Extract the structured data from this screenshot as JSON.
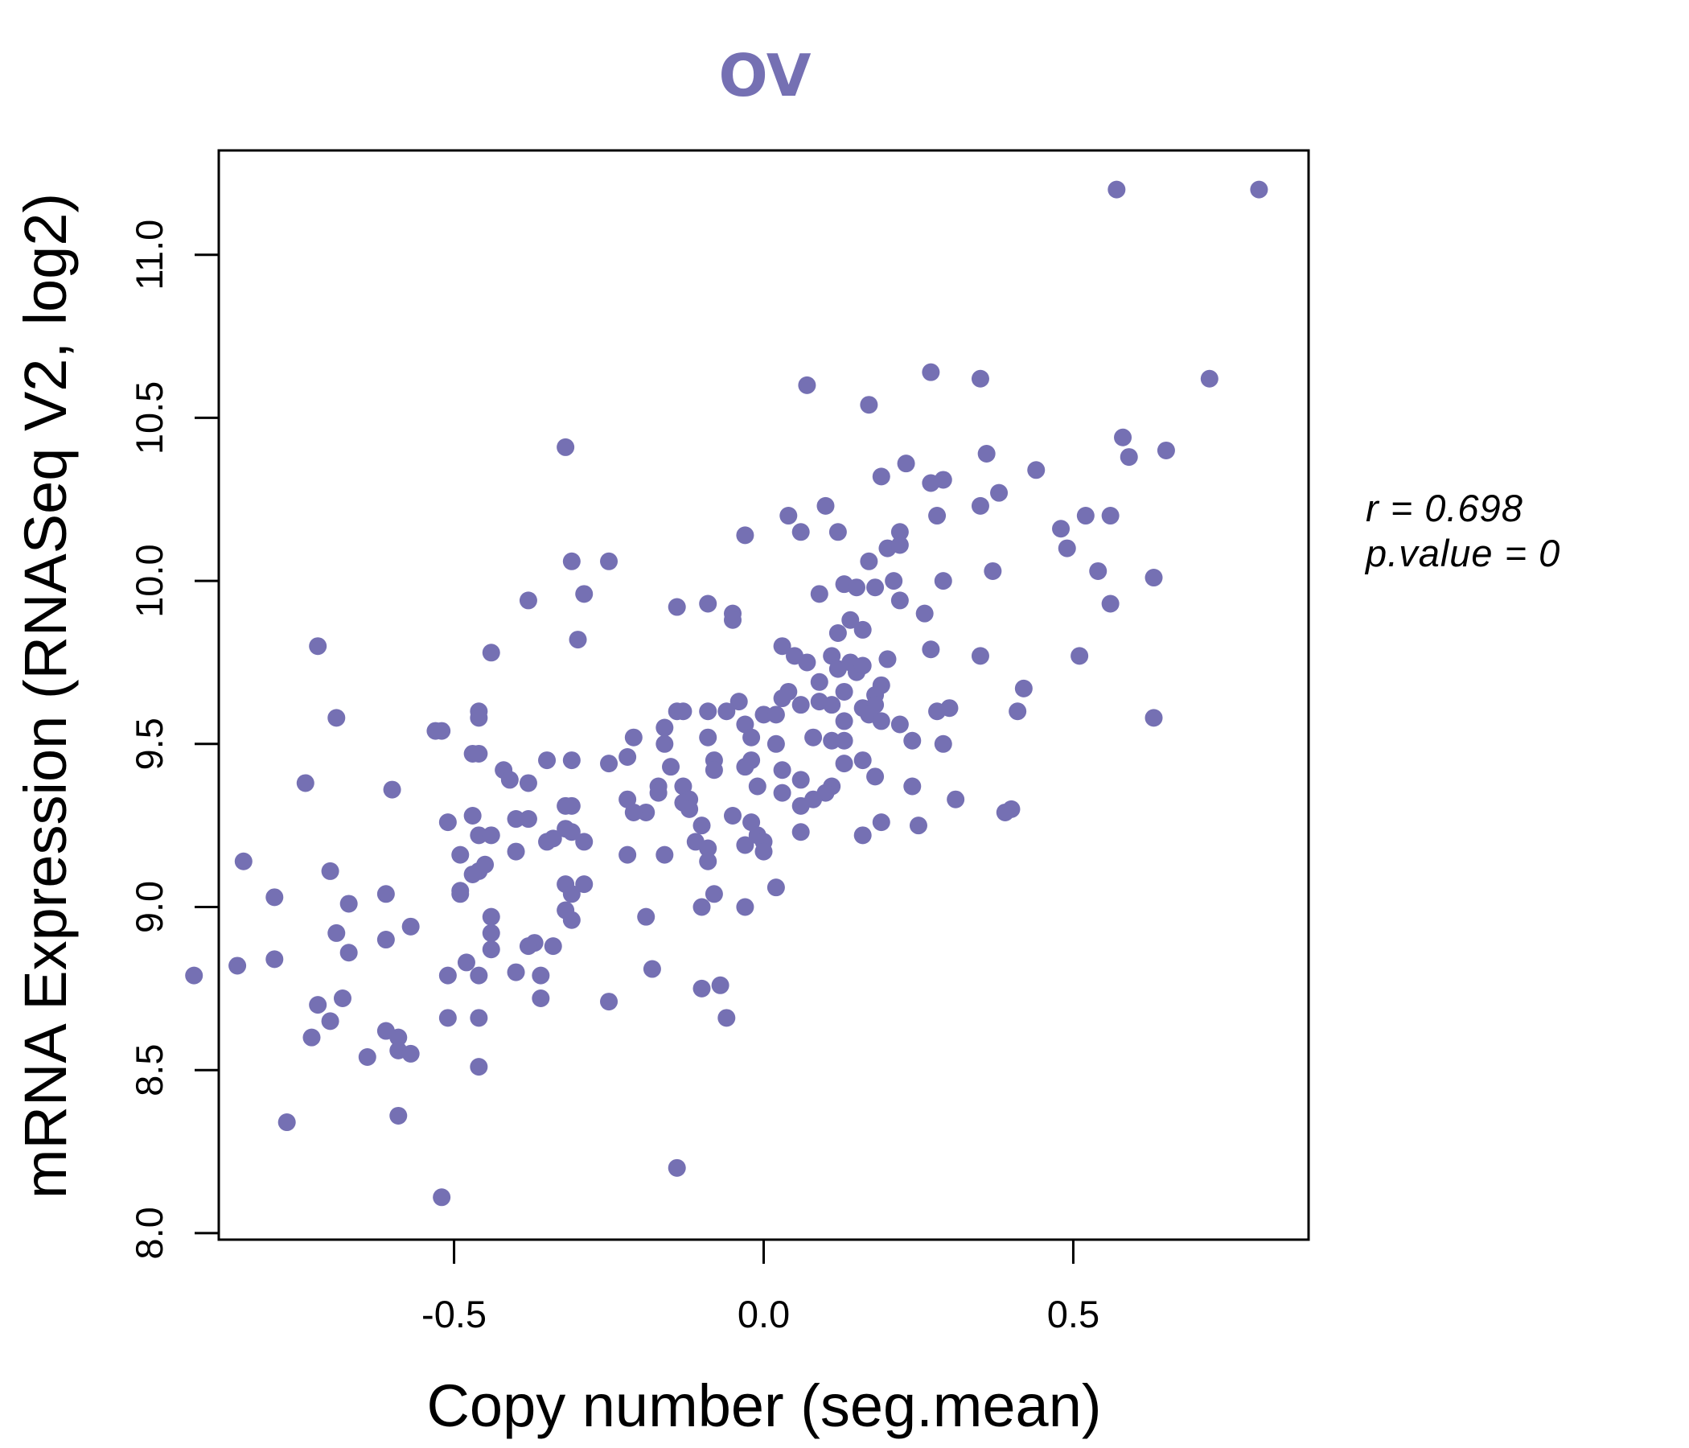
{
  "chart_data": {
    "type": "scatter",
    "title": "OV",
    "xlabel": "Copy number (seg.mean)",
    "ylabel": "mRNA Expression (RNASeq V2, log2)",
    "xlim": [
      -0.88,
      0.88
    ],
    "ylim": [
      7.98,
      11.32
    ],
    "x_ticks": [
      -0.5,
      0.0,
      0.5
    ],
    "x_tick_labels": [
      "-0.5",
      "0.0",
      "0.5"
    ],
    "y_ticks": [
      8.0,
      8.5,
      9.0,
      9.5,
      10.0,
      10.5,
      11.0
    ],
    "y_tick_labels": [
      "8.0",
      "8.5",
      "9.0",
      "9.5",
      "10.0",
      "10.5",
      "11.0"
    ],
    "point_color": "#7570b3",
    "stats": {
      "r_label": "r = 0.698",
      "p_label": "p.value = 0"
    },
    "points": [
      [
        0.57,
        11.2
      ],
      [
        0.8,
        11.2
      ],
      [
        0.27,
        10.64
      ],
      [
        0.35,
        10.62
      ],
      [
        0.72,
        10.62
      ],
      [
        0.07,
        10.6
      ],
      [
        0.17,
        10.54
      ],
      [
        -0.32,
        10.41
      ],
      [
        0.58,
        10.44
      ],
      [
        0.59,
        10.38
      ],
      [
        0.65,
        10.4
      ],
      [
        0.36,
        10.39
      ],
      [
        0.23,
        10.36
      ],
      [
        0.44,
        10.34
      ],
      [
        0.19,
        10.32
      ],
      [
        0.27,
        10.3
      ],
      [
        0.29,
        10.31
      ],
      [
        0.38,
        10.27
      ],
      [
        0.35,
        10.23
      ],
      [
        0.1,
        10.23
      ],
      [
        0.28,
        10.2
      ],
      [
        0.04,
        10.2
      ],
      [
        0.52,
        10.2
      ],
      [
        0.56,
        10.2
      ],
      [
        0.48,
        10.16
      ],
      [
        0.06,
        10.15
      ],
      [
        0.12,
        10.15
      ],
      [
        0.22,
        10.15
      ],
      [
        -0.03,
        10.14
      ],
      [
        0.2,
        10.1
      ],
      [
        0.22,
        10.11
      ],
      [
        0.49,
        10.1
      ],
      [
        0.17,
        10.06
      ],
      [
        -0.31,
        10.06
      ],
      [
        -0.25,
        10.06
      ],
      [
        0.54,
        10.03
      ],
      [
        0.37,
        10.03
      ],
      [
        0.63,
        10.01
      ],
      [
        0.13,
        9.99
      ],
      [
        0.15,
        9.98
      ],
      [
        0.18,
        9.98
      ],
      [
        0.21,
        10.0
      ],
      [
        0.29,
        10.0
      ],
      [
        0.09,
        9.96
      ],
      [
        -0.29,
        9.96
      ],
      [
        -0.38,
        9.94
      ],
      [
        0.22,
        9.94
      ],
      [
        0.56,
        9.93
      ],
      [
        -0.14,
        9.92
      ],
      [
        -0.09,
        9.93
      ],
      [
        -0.05,
        9.9
      ],
      [
        0.26,
        9.9
      ],
      [
        0.14,
        9.88
      ],
      [
        -0.05,
        9.88
      ],
      [
        0.16,
        9.85
      ],
      [
        0.12,
        9.84
      ],
      [
        -0.3,
        9.82
      ],
      [
        -0.72,
        9.8
      ],
      [
        0.03,
        9.8
      ],
      [
        0.27,
        9.79
      ],
      [
        -0.44,
        9.78
      ],
      [
        0.05,
        9.77
      ],
      [
        0.11,
        9.77
      ],
      [
        0.35,
        9.77
      ],
      [
        0.51,
        9.77
      ],
      [
        0.14,
        9.75
      ],
      [
        0.2,
        9.76
      ],
      [
        0.07,
        9.75
      ],
      [
        0.12,
        9.73
      ],
      [
        0.15,
        9.72
      ],
      [
        0.16,
        9.74
      ],
      [
        0.09,
        9.69
      ],
      [
        0.19,
        9.68
      ],
      [
        0.42,
        9.67
      ],
      [
        0.13,
        9.66
      ],
      [
        0.04,
        9.66
      ],
      [
        0.18,
        9.65
      ],
      [
        -0.04,
        9.63
      ],
      [
        0.03,
        9.64
      ],
      [
        0.09,
        9.63
      ],
      [
        0.11,
        9.62
      ],
      [
        0.16,
        9.61
      ],
      [
        0.18,
        9.62
      ],
      [
        0.06,
        9.62
      ],
      [
        0.41,
        9.6
      ],
      [
        0.3,
        9.61
      ],
      [
        -0.14,
        9.6
      ],
      [
        -0.13,
        9.6
      ],
      [
        -0.09,
        9.6
      ],
      [
        -0.06,
        9.6
      ],
      [
        0.0,
        9.59
      ],
      [
        0.02,
        9.59
      ],
      [
        0.17,
        9.59
      ],
      [
        0.28,
        9.6
      ],
      [
        -0.46,
        9.6
      ],
      [
        -0.46,
        9.58
      ],
      [
        -0.69,
        9.58
      ],
      [
        0.63,
        9.58
      ],
      [
        0.13,
        9.57
      ],
      [
        0.19,
        9.57
      ],
      [
        0.22,
        9.56
      ],
      [
        -0.03,
        9.56
      ],
      [
        -0.16,
        9.55
      ],
      [
        -0.53,
        9.54
      ],
      [
        -0.52,
        9.54
      ],
      [
        -0.02,
        9.52
      ],
      [
        0.08,
        9.52
      ],
      [
        -0.09,
        9.52
      ],
      [
        -0.21,
        9.52
      ],
      [
        0.24,
        9.51
      ],
      [
        -0.16,
        9.5
      ],
      [
        0.02,
        9.5
      ],
      [
        0.11,
        9.51
      ],
      [
        0.13,
        9.51
      ],
      [
        0.29,
        9.5
      ],
      [
        -0.47,
        9.47
      ],
      [
        -0.46,
        9.47
      ],
      [
        -0.22,
        9.46
      ],
      [
        -0.35,
        9.45
      ],
      [
        -0.31,
        9.45
      ],
      [
        -0.25,
        9.44
      ],
      [
        0.13,
        9.44
      ],
      [
        0.16,
        9.45
      ],
      [
        -0.08,
        9.45
      ],
      [
        -0.02,
        9.45
      ],
      [
        -0.03,
        9.43
      ],
      [
        -0.15,
        9.43
      ],
      [
        -0.08,
        9.42
      ],
      [
        0.03,
        9.42
      ],
      [
        -0.42,
        9.42
      ],
      [
        0.18,
        9.4
      ],
      [
        0.06,
        9.39
      ],
      [
        -0.41,
        9.39
      ],
      [
        -0.38,
        9.38
      ],
      [
        -0.74,
        9.38
      ],
      [
        -0.17,
        9.37
      ],
      [
        -0.13,
        9.37
      ],
      [
        0.11,
        9.37
      ],
      [
        -0.01,
        9.37
      ],
      [
        0.24,
        9.37
      ],
      [
        -0.6,
        9.36
      ],
      [
        -0.17,
        9.35
      ],
      [
        0.1,
        9.35
      ],
      [
        0.03,
        9.35
      ],
      [
        0.08,
        9.33
      ],
      [
        -0.12,
        9.33
      ],
      [
        -0.22,
        9.33
      ],
      [
        -0.13,
        9.32
      ],
      [
        0.31,
        9.33
      ],
      [
        0.06,
        9.31
      ],
      [
        -0.31,
        9.31
      ],
      [
        -0.32,
        9.31
      ],
      [
        -0.12,
        9.3
      ],
      [
        0.4,
        9.3
      ],
      [
        0.39,
        9.29
      ],
      [
        -0.19,
        9.29
      ],
      [
        -0.21,
        9.29
      ],
      [
        -0.05,
        9.28
      ],
      [
        -0.47,
        9.28
      ],
      [
        -0.4,
        9.27
      ],
      [
        -0.38,
        9.27
      ],
      [
        -0.02,
        9.26
      ],
      [
        0.19,
        9.26
      ],
      [
        0.25,
        9.25
      ],
      [
        -0.51,
        9.26
      ],
      [
        -0.1,
        9.25
      ],
      [
        -0.32,
        9.24
      ],
      [
        -0.31,
        9.23
      ],
      [
        -0.46,
        9.22
      ],
      [
        -0.44,
        9.22
      ],
      [
        0.06,
        9.23
      ],
      [
        0.16,
        9.22
      ],
      [
        -0.01,
        9.22
      ],
      [
        -0.34,
        9.21
      ],
      [
        -0.35,
        9.2
      ],
      [
        -0.29,
        9.2
      ],
      [
        -0.11,
        9.2
      ],
      [
        -0.03,
        9.19
      ],
      [
        0.0,
        9.2
      ],
      [
        0.0,
        9.17
      ],
      [
        -0.09,
        9.18
      ],
      [
        -0.4,
        9.17
      ],
      [
        -0.49,
        9.16
      ],
      [
        -0.16,
        9.16
      ],
      [
        -0.22,
        9.16
      ],
      [
        -0.09,
        9.14
      ],
      [
        -0.84,
        9.14
      ],
      [
        -0.46,
        9.11
      ],
      [
        -0.45,
        9.13
      ],
      [
        -0.47,
        9.1
      ],
      [
        -0.7,
        9.11
      ],
      [
        -0.32,
        9.07
      ],
      [
        -0.29,
        9.07
      ],
      [
        0.02,
        9.06
      ],
      [
        -0.49,
        9.05
      ],
      [
        -0.31,
        9.04
      ],
      [
        -0.49,
        9.04
      ],
      [
        -0.61,
        9.04
      ],
      [
        -0.08,
        9.04
      ],
      [
        -0.79,
        9.03
      ],
      [
        -0.67,
        9.01
      ],
      [
        -0.03,
        9.0
      ],
      [
        -0.1,
        9.0
      ],
      [
        -0.32,
        8.99
      ],
      [
        -0.31,
        8.96
      ],
      [
        -0.44,
        8.97
      ],
      [
        -0.19,
        8.97
      ],
      [
        -0.57,
        8.94
      ],
      [
        -0.44,
        8.92
      ],
      [
        -0.69,
        8.92
      ],
      [
        -0.61,
        8.9
      ],
      [
        -0.37,
        8.89
      ],
      [
        -0.38,
        8.88
      ],
      [
        -0.34,
        8.88
      ],
      [
        -0.44,
        8.87
      ],
      [
        -0.67,
        8.86
      ],
      [
        -0.79,
        8.84
      ],
      [
        -0.48,
        8.83
      ],
      [
        -0.85,
        8.82
      ],
      [
        -0.18,
        8.81
      ],
      [
        -0.4,
        8.8
      ],
      [
        -0.36,
        8.79
      ],
      [
        -0.51,
        8.79
      ],
      [
        -0.46,
        8.79
      ],
      [
        -0.92,
        8.79
      ],
      [
        -0.07,
        8.76
      ],
      [
        -0.1,
        8.75
      ],
      [
        -0.68,
        8.72
      ],
      [
        -0.36,
        8.72
      ],
      [
        -0.25,
        8.71
      ],
      [
        -0.72,
        8.7
      ],
      [
        -0.06,
        8.66
      ],
      [
        -0.51,
        8.66
      ],
      [
        -0.46,
        8.66
      ],
      [
        -0.7,
        8.65
      ],
      [
        -0.61,
        8.62
      ],
      [
        -0.59,
        8.6
      ],
      [
        -0.73,
        8.6
      ],
      [
        -0.59,
        8.56
      ],
      [
        -0.57,
        8.55
      ],
      [
        -0.64,
        8.54
      ],
      [
        -0.46,
        8.51
      ],
      [
        -0.59,
        8.36
      ],
      [
        -0.77,
        8.34
      ],
      [
        -0.14,
        8.2
      ],
      [
        -0.52,
        8.11
      ]
    ]
  }
}
